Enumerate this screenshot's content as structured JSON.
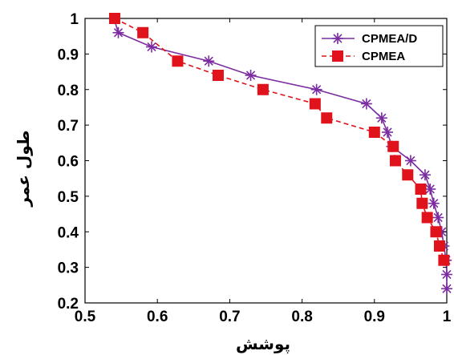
{
  "chart_data": {
    "type": "line",
    "xlabel": "پوشش",
    "ylabel": "طول عمر",
    "xlim": [
      0.5,
      1
    ],
    "ylim": [
      0.2,
      1
    ],
    "xticks": [
      "0.5",
      "0.6",
      "0.7",
      "0.8",
      "0.9",
      "1"
    ],
    "yticks": [
      "0.2",
      "0.3",
      "0.4",
      "0.5",
      "0.6",
      "0.7",
      "0.8",
      "0.9",
      "1"
    ],
    "grid": false,
    "legend_position": "top-right",
    "series": [
      {
        "name": "CPMEA/D",
        "color": "#7b2ca0",
        "line_style": "solid",
        "marker": "asterisk",
        "x": [
          0.54,
          0.546,
          0.592,
          0.671,
          0.729,
          0.82,
          0.889,
          0.91,
          0.918,
          0.924,
          0.95,
          0.97,
          0.977,
          0.982,
          0.988,
          0.993,
          0.996,
          0.999,
          1.0,
          1.0
        ],
        "y": [
          1.0,
          0.96,
          0.92,
          0.88,
          0.84,
          0.8,
          0.76,
          0.72,
          0.68,
          0.64,
          0.6,
          0.56,
          0.52,
          0.48,
          0.44,
          0.4,
          0.36,
          0.32,
          0.28,
          0.24
        ]
      },
      {
        "name": "CPMEA",
        "color": "#e0121b",
        "line_style": "dashed",
        "marker": "square",
        "x": [
          0.541,
          0.58,
          0.628,
          0.684,
          0.746,
          0.818,
          0.834,
          0.9,
          0.926,
          0.929,
          0.946,
          0.964,
          0.966,
          0.973,
          0.985,
          0.99,
          0.996
        ],
        "y": [
          1.0,
          0.96,
          0.88,
          0.84,
          0.8,
          0.76,
          0.72,
          0.68,
          0.64,
          0.6,
          0.56,
          0.52,
          0.48,
          0.44,
          0.4,
          0.36,
          0.32
        ]
      }
    ]
  }
}
